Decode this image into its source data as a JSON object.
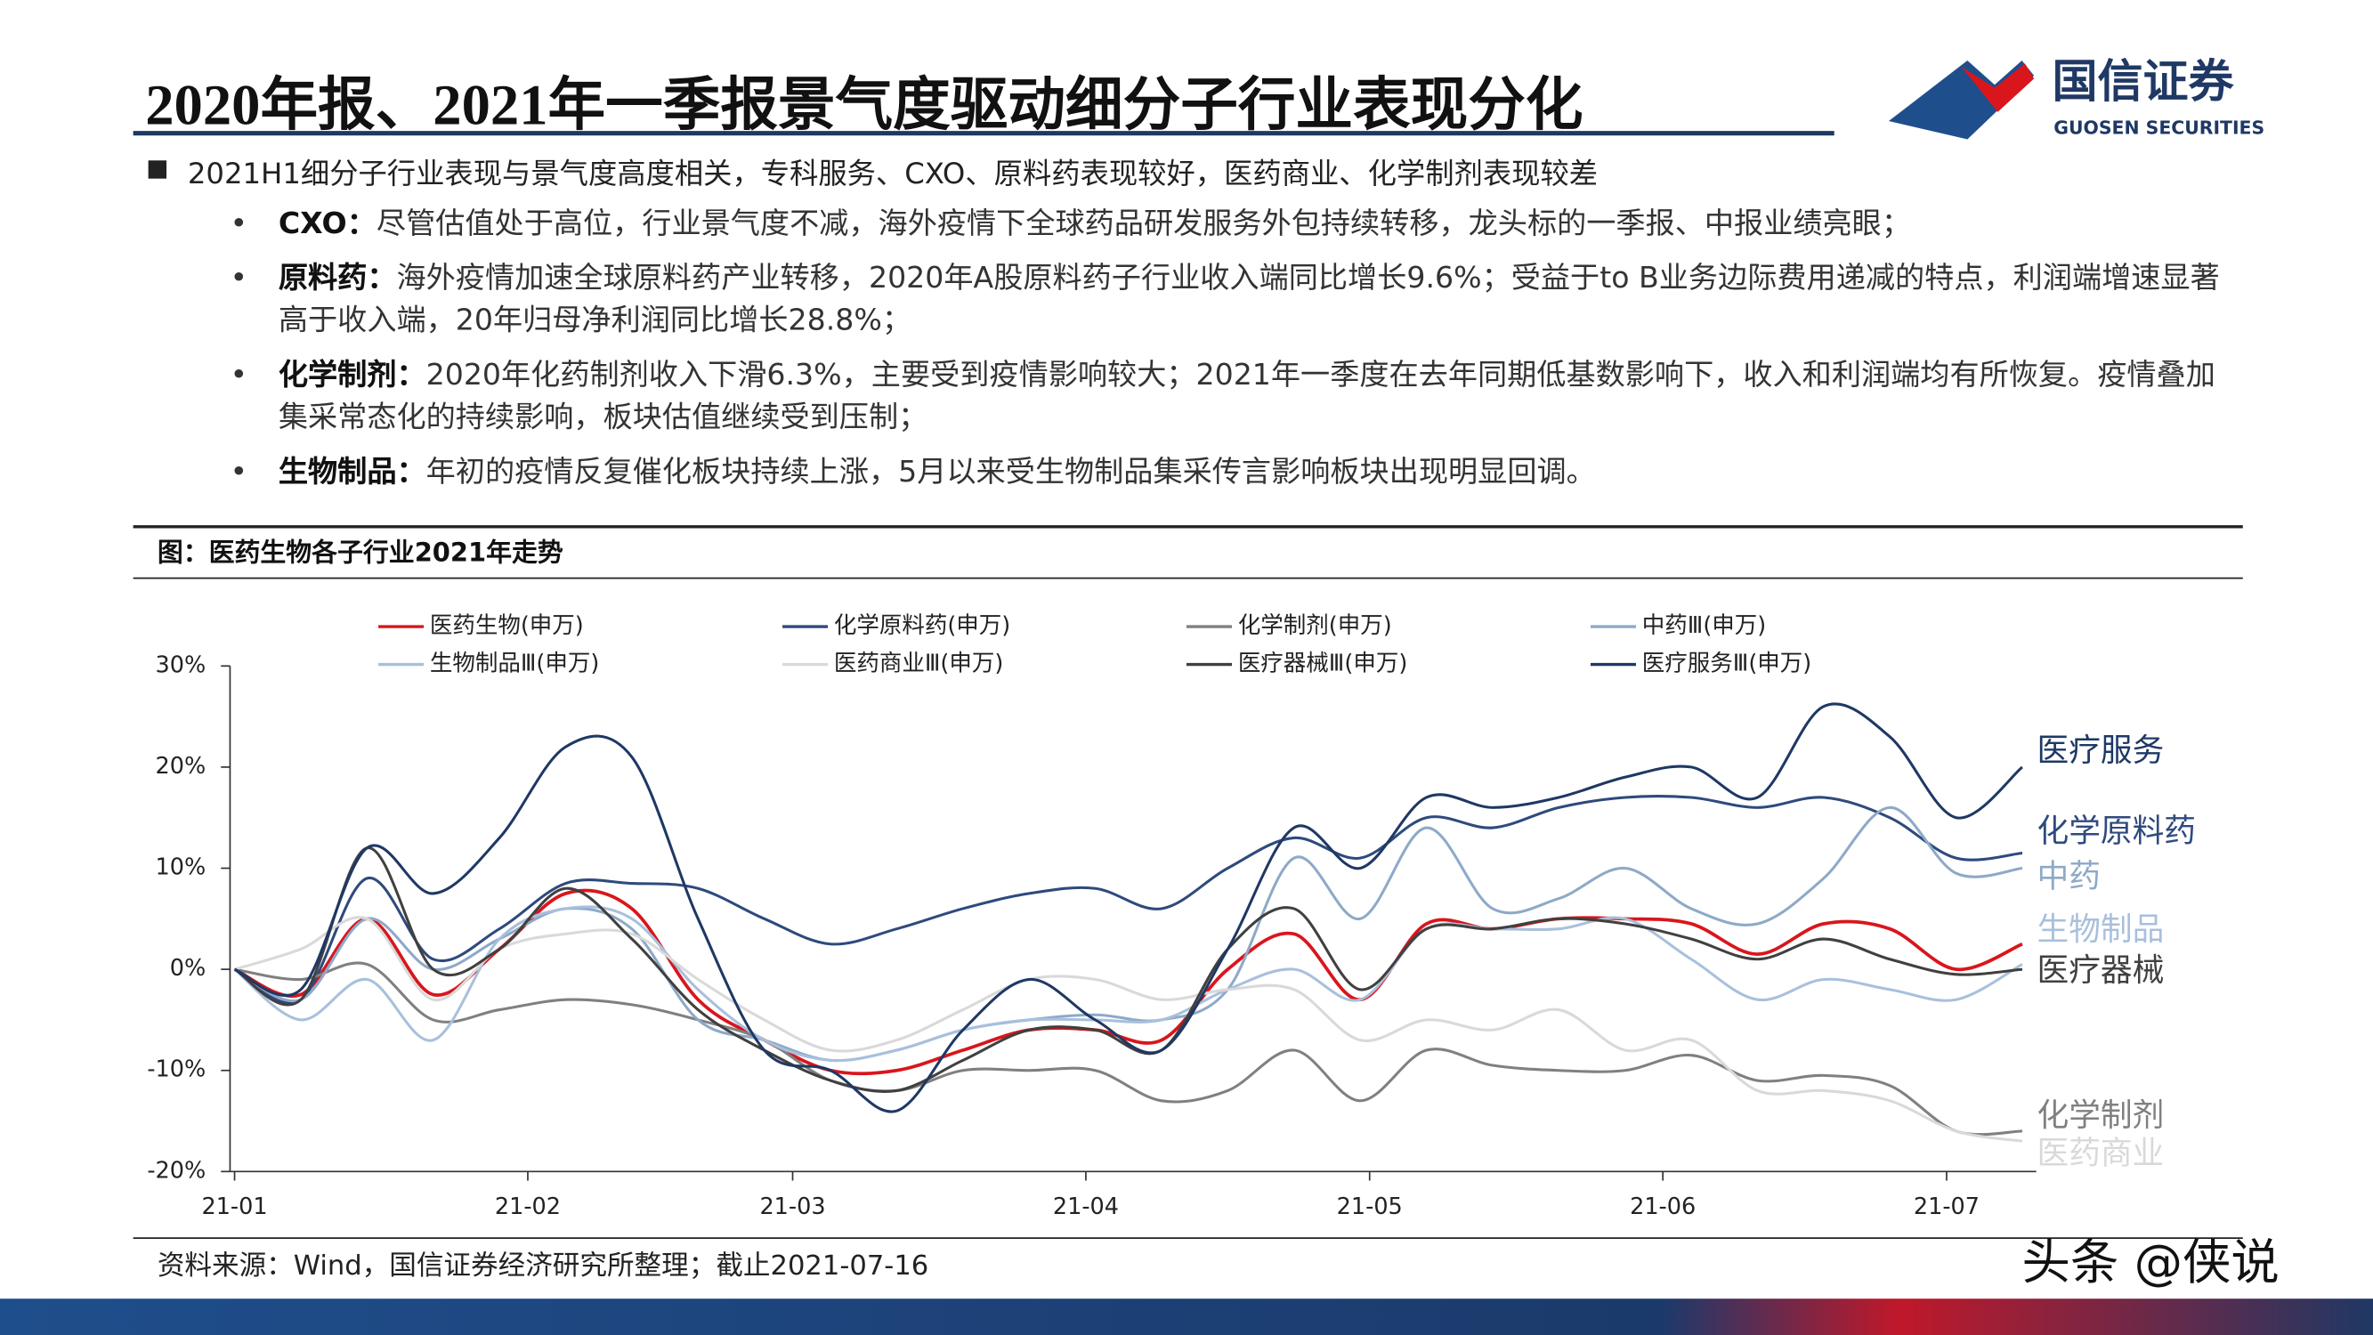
{
  "header": {
    "title": "2020年报、2021年一季报景气度驱动细分子行业表现分化",
    "logo_name": "国信证券",
    "logo_english": "GUOSEN SECURITIES"
  },
  "summary": "2021H1细分子行业表现与景气度高度相关，专科服务、CXO、原料药表现较好，医药商业、化学制剂表现较差",
  "bullets": [
    {
      "label": "CXO：",
      "text": "尽管估值处于高位，行业景气度不减，海外疫情下全球药品研发服务外包持续转移，龙头标的一季报、中报业绩亮眼；"
    },
    {
      "label": "原料药：",
      "text": "海外疫情加速全球原料药产业转移，2020年A股原料药子行业收入端同比增长9.6%；受益于to B业务边际费用递减的特点，利润端增速显著高于收入端，20年归母净利润同比增长28.8%；"
    },
    {
      "label": "化学制剂：",
      "text": "2020年化药制剂收入下滑6.3%，主要受到疫情影响较大；2021年一季度在去年同期低基数影响下，收入和利润端均有所恢复。疫情叠加集采常态化的持续影响，板块估值继续受到压制；"
    },
    {
      "label": "生物制品：",
      "text": "年初的疫情反复催化板块持续上涨，5月以来受生物制品集采传言影响板块出现明显回调。"
    }
  ],
  "chart_data": {
    "type": "line",
    "title": "图：医药生物各子行业2021年走势",
    "x": [
      0,
      7,
      14,
      21,
      28,
      35,
      42,
      49,
      56,
      63,
      70,
      77,
      84,
      91,
      98,
      105,
      112,
      119,
      126,
      133,
      140,
      147,
      154,
      161,
      168,
      175,
      182,
      189
    ],
    "xlim": [
      0,
      190
    ],
    "xticks": [
      {
        "value": 0,
        "label": "21-01"
      },
      {
        "value": 31,
        "label": "21-02"
      },
      {
        "value": 59,
        "label": "21-03"
      },
      {
        "value": 90,
        "label": "21-04"
      },
      {
        "value": 120,
        "label": "21-05"
      },
      {
        "value": 151,
        "label": "21-06"
      },
      {
        "value": 181,
        "label": "21-07"
      }
    ],
    "ylim": [
      -20,
      30
    ],
    "yticks": [
      {
        "value": -20,
        "label": "-20%"
      },
      {
        "value": -10,
        "label": "-10%"
      },
      {
        "value": 0,
        "label": "0%"
      },
      {
        "value": 10,
        "label": "10%"
      },
      {
        "value": 20,
        "label": "20%"
      },
      {
        "value": 30,
        "label": "30%"
      }
    ],
    "series": [
      {
        "name": "医药生物(申万)",
        "color": "#d9161c",
        "values": [
          0,
          -2.5,
          5,
          -2.5,
          2,
          7.5,
          6,
          -3,
          -7,
          -10,
          -10,
          -8,
          -6,
          -6,
          -7,
          0,
          3.5,
          -3,
          4.5,
          4,
          5,
          5,
          4.5,
          1.5,
          4.5,
          4,
          0,
          2.5
        ]
      },
      {
        "name": "化学原料药(申万)",
        "color": "#2e4a7d",
        "end_label": "化学原料药",
        "values": [
          0,
          -3,
          9,
          1,
          4,
          8.5,
          8.5,
          8,
          5,
          2.5,
          4,
          6,
          7.5,
          8,
          6,
          10,
          13,
          11,
          15,
          14,
          16,
          17,
          17,
          16,
          17,
          15,
          11,
          11.5
        ]
      },
      {
        "name": "化学制剂(申万)",
        "color": "#808080",
        "end_label": "化学制剂",
        "values": [
          0,
          -1,
          0.5,
          -5,
          -4,
          -3,
          -3.5,
          -5,
          -7,
          -11,
          -12,
          -10,
          -10,
          -10,
          -13,
          -12,
          -8,
          -13,
          -8,
          -9.5,
          -10,
          -10,
          -8.5,
          -11,
          -10.5,
          -11.5,
          -16,
          -16
        ]
      },
      {
        "name": "中药Ⅲ(申万)",
        "color": "#8ea9c8",
        "end_label": "中药",
        "values": [
          0,
          -3,
          5,
          0,
          3,
          6,
          4,
          -5,
          -7,
          -9,
          -8,
          -6,
          -5,
          -4.5,
          -5,
          -2,
          11,
          5,
          14,
          6,
          7,
          10,
          6,
          4.5,
          9,
          16,
          9.5,
          10
        ]
      },
      {
        "name": "生物制品Ⅲ(申万)",
        "color": "#a8c0dc",
        "end_label": "生物制品",
        "values": [
          0,
          -5,
          -1,
          -7,
          3,
          6,
          5,
          -2,
          -7,
          -9,
          -8,
          -6,
          -5,
          -5,
          -5,
          -2,
          0,
          -3,
          4,
          4,
          4,
          5,
          1,
          -3,
          -1,
          -2,
          -3,
          0.5
        ]
      },
      {
        "name": "医药商业Ⅲ(申万)",
        "color": "#d9d9d9",
        "end_label": "医药商业",
        "values": [
          0,
          2,
          5,
          -3,
          2,
          3.5,
          3.5,
          -1,
          -5,
          -8,
          -7,
          -4,
          -1,
          -1,
          -3,
          -2,
          -2,
          -7,
          -5,
          -6,
          -4,
          -8,
          -7,
          -12,
          -12,
          -13,
          -16,
          -17
        ]
      },
      {
        "name": "医疗器械Ⅲ(申万)",
        "color": "#404040",
        "end_label": "医疗器械",
        "values": [
          0,
          -3,
          12,
          0,
          2,
          8,
          3,
          -4,
          -8,
          -11,
          -12,
          -9,
          -6,
          -6,
          -8,
          2,
          6,
          -2,
          4,
          4,
          5,
          4.5,
          3,
          1,
          3,
          1,
          -0.5,
          0
        ]
      },
      {
        "name": "医疗服务Ⅲ(申万)",
        "color": "#1f3864",
        "end_label": "医疗服务",
        "values": [
          0,
          -2,
          12,
          7.5,
          13,
          22,
          21,
          5,
          -8,
          -10,
          -14,
          -6,
          -1,
          -5,
          -8,
          2,
          14,
          10,
          17,
          16,
          17,
          19,
          20,
          17,
          26,
          23,
          15,
          20
        ]
      }
    ]
  },
  "source": "资料来源：Wind，国信证券经济研究所整理；截止2021-07-16",
  "watermark": "头条 @侠说"
}
